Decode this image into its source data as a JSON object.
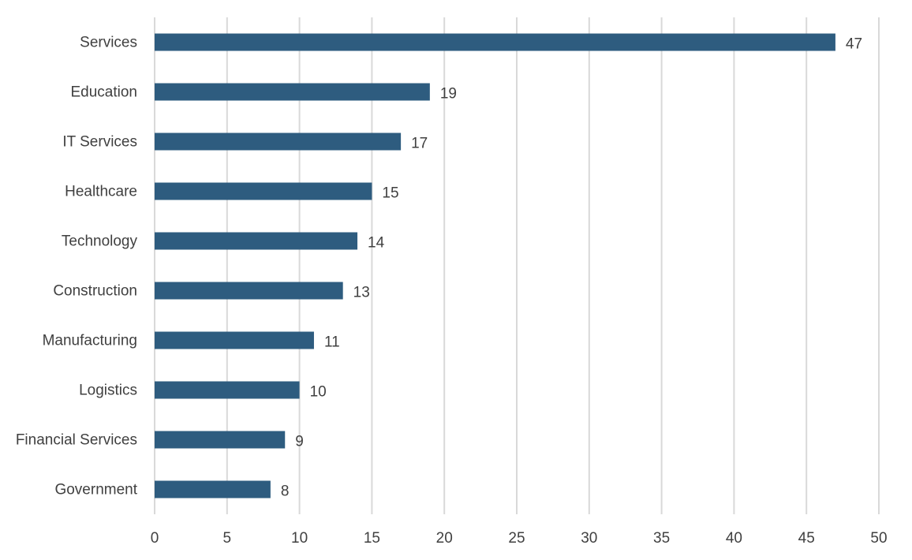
{
  "chart_data": {
    "type": "bar",
    "orientation": "horizontal",
    "categories": [
      "Services",
      "Education",
      "IT Services",
      "Healthcare",
      "Technology",
      "Construction",
      "Manufacturing",
      "Logistics",
      "Financial Services",
      "Government"
    ],
    "values": [
      47,
      19,
      17,
      15,
      14,
      13,
      11,
      10,
      9,
      8
    ],
    "xlim": [
      0,
      50
    ],
    "xticks": [
      0,
      5,
      10,
      15,
      20,
      25,
      30,
      35,
      40,
      45,
      50
    ],
    "grid": true,
    "data_labels": true,
    "bar_color": "#2e5c7f",
    "grid_color": "#d9d9d9",
    "text_color": "#404040"
  }
}
